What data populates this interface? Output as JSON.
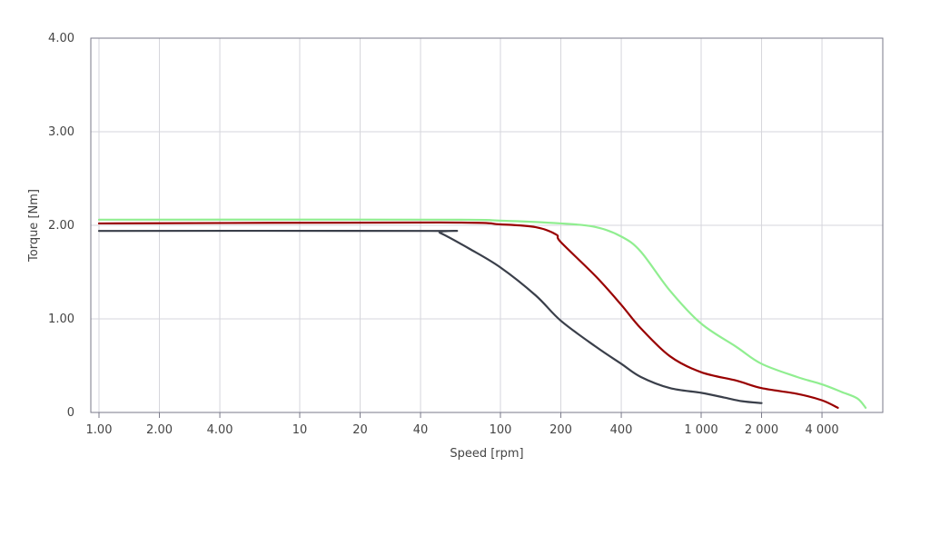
{
  "chart_data": {
    "type": "line",
    "title": "",
    "xlabel": "Speed [rpm]",
    "ylabel": "Torque [Nm]",
    "x_scale": "log",
    "xlim": [
      1,
      6000
    ],
    "ylim": [
      0,
      4
    ],
    "grid": true,
    "legend": "none",
    "x_ticks": [
      {
        "value": 1,
        "label": "1.00"
      },
      {
        "value": 2,
        "label": "2.00"
      },
      {
        "value": 4,
        "label": "4.00"
      },
      {
        "value": 10,
        "label": "10"
      },
      {
        "value": 20,
        "label": "20"
      },
      {
        "value": 40,
        "label": "40"
      },
      {
        "value": 100,
        "label": "100"
      },
      {
        "value": 200,
        "label": "200"
      },
      {
        "value": 400,
        "label": "400"
      },
      {
        "value": 1000,
        "label": "1 000"
      },
      {
        "value": 2000,
        "label": "2 000"
      },
      {
        "value": 4000,
        "label": "4 000"
      }
    ],
    "y_ticks": [
      {
        "value": 0,
        "label": "0"
      },
      {
        "value": 1,
        "label": "1.00"
      },
      {
        "value": 2,
        "label": "2.00"
      },
      {
        "value": 3,
        "label": "3.00"
      },
      {
        "value": 4,
        "label": "4.00"
      }
    ],
    "series": [
      {
        "color": "#90ee90",
        "points": [
          [
            1,
            2.06
          ],
          [
            50,
            2.06
          ],
          [
            100,
            2.05
          ],
          [
            200,
            2.02
          ],
          [
            300,
            1.98
          ],
          [
            400,
            1.88
          ],
          [
            500,
            1.72
          ],
          [
            700,
            1.3
          ],
          [
            1000,
            0.95
          ],
          [
            1500,
            0.7
          ],
          [
            2000,
            0.52
          ],
          [
            3000,
            0.38
          ],
          [
            4000,
            0.3
          ],
          [
            5000,
            0.22
          ],
          [
            6000,
            0.15
          ],
          [
            6600,
            0.05
          ]
        ]
      },
      {
        "color": "#990000",
        "points": [
          [
            1,
            2.02
          ],
          [
            50,
            2.03
          ],
          [
            100,
            2.01
          ],
          [
            150,
            1.98
          ],
          [
            190,
            1.9
          ],
          [
            200,
            1.82
          ],
          [
            300,
            1.45
          ],
          [
            400,
            1.15
          ],
          [
            500,
            0.9
          ],
          [
            700,
            0.6
          ],
          [
            1000,
            0.43
          ],
          [
            1500,
            0.34
          ],
          [
            2000,
            0.26
          ],
          [
            3000,
            0.2
          ],
          [
            4000,
            0.13
          ],
          [
            4800,
            0.05
          ]
        ]
      },
      {
        "color": "#3a3f4a",
        "points": [
          [
            1,
            1.94
          ],
          [
            45,
            1.94
          ],
          [
            50,
            1.92
          ],
          [
            70,
            1.75
          ],
          [
            100,
            1.55
          ],
          [
            150,
            1.25
          ],
          [
            200,
            0.98
          ],
          [
            300,
            0.7
          ],
          [
            400,
            0.52
          ],
          [
            500,
            0.38
          ],
          [
            700,
            0.26
          ],
          [
            1000,
            0.21
          ],
          [
            1300,
            0.16
          ],
          [
            1600,
            0.12
          ],
          [
            2000,
            0.1
          ]
        ]
      }
    ]
  }
}
